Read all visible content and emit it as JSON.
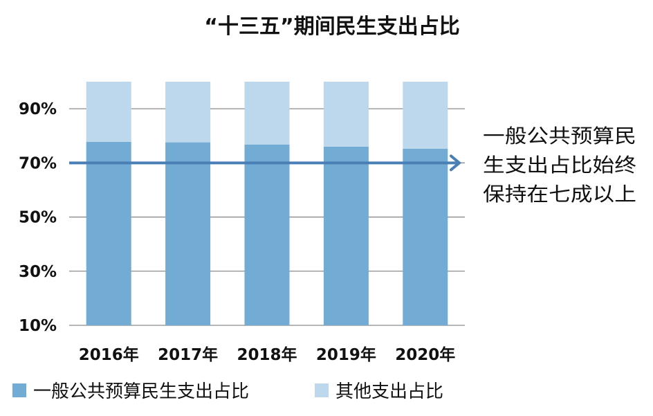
{
  "chart_data": {
    "type": "bar",
    "stacked": true,
    "title": "“十三五”期间民生支出占比",
    "xlabel": "",
    "ylabel": "",
    "categories": [
      "2016年",
      "2017年",
      "2018年",
      "2019年",
      "2020年"
    ],
    "series": [
      {
        "name": "一般公共预算民生支出占比",
        "color": "#72abd3",
        "values": [
          77.8,
          77.6,
          76.8,
          76.0,
          75.2
        ]
      },
      {
        "name": "其他支出占比",
        "color": "#bdd7ec",
        "values": [
          22.2,
          22.4,
          23.2,
          24.0,
          24.8
        ]
      }
    ],
    "ylim": [
      10,
      100
    ],
    "yticks": [
      10,
      30,
      50,
      70,
      90
    ],
    "ytick_labels": [
      "10%",
      "30%",
      "50%",
      "70%",
      "90%"
    ],
    "grid": true,
    "legend_position": "bottom",
    "reference_line": {
      "value": 70,
      "color": "#4a7fb6"
    },
    "annotation_lines": [
      "一般公共预算民",
      "生支出占比始终",
      "保持在七成以上"
    ]
  }
}
